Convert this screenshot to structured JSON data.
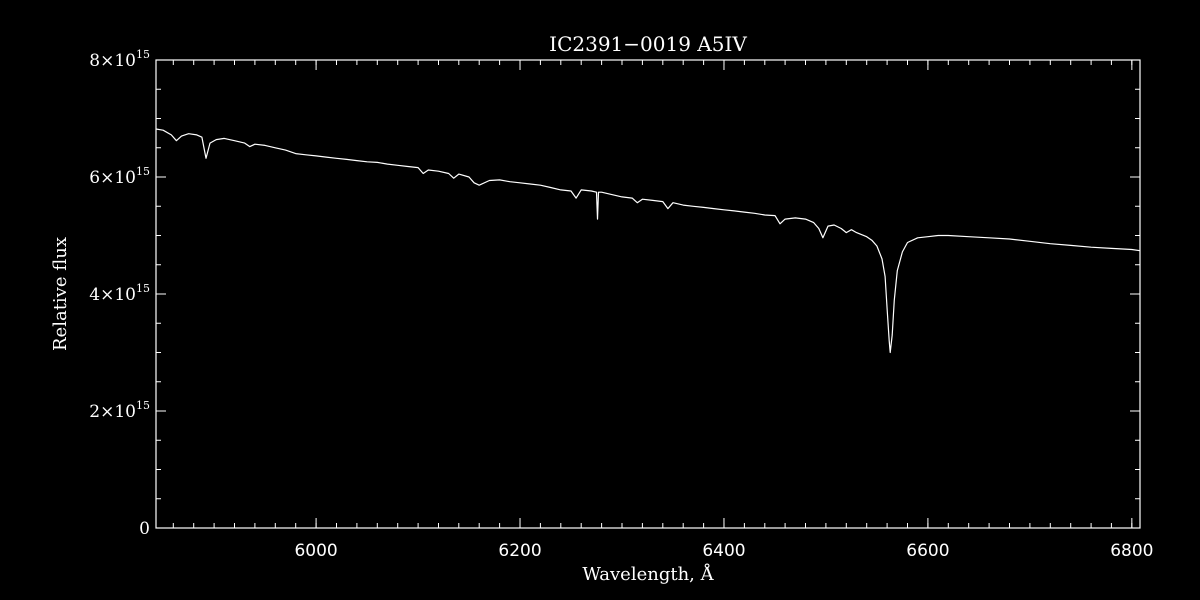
{
  "chart_data": {
    "type": "line",
    "title": "IC2391−0019   A5IV",
    "xlabel": "Wavelength, Å",
    "ylabel": "Relative flux",
    "xlim": [
      5843,
      6808
    ],
    "ylim": [
      0,
      8000000000000000.0
    ],
    "x_ticks": [
      {
        "value": 6000,
        "label": "6000"
      },
      {
        "value": 6200,
        "label": "6200"
      },
      {
        "value": 6400,
        "label": "6400"
      },
      {
        "value": 6600,
        "label": "6600"
      },
      {
        "value": 6800,
        "label": "6800"
      }
    ],
    "y_ticks": [
      {
        "value": 0,
        "mantissa": "0",
        "exponent": ""
      },
      {
        "value": 2000000000000000.0,
        "mantissa": "2×10",
        "exponent": "15"
      },
      {
        "value": 4000000000000000.0,
        "mantissa": "4×10",
        "exponent": "15"
      },
      {
        "value": 6000000000000000.0,
        "mantissa": "6×10",
        "exponent": "15"
      },
      {
        "value": 8000000000000000.0,
        "mantissa": "8×10",
        "exponent": "15"
      }
    ],
    "x_minor_step": 20,
    "y_minor_step": 500000000000000.0,
    "grid": false,
    "colors": {
      "background": "#000000",
      "foreground": "#ffffff"
    },
    "series": [
      {
        "x": [
          5843,
          5850,
          5858,
          5863,
          5868,
          5875,
          5883,
          5888,
          5892,
          5896,
          5902,
          5910,
          5920,
          5930,
          5935,
          5940,
          5950,
          5960,
          5970,
          5980,
          5990,
          6000,
          6010,
          6020,
          6030,
          6040,
          6050,
          6060,
          6070,
          6080,
          6090,
          6100,
          6105,
          6110,
          6120,
          6130,
          6135,
          6140,
          6150,
          6155,
          6160,
          6170,
          6180,
          6190,
          6200,
          6210,
          6220,
          6230,
          6240,
          6250,
          6255,
          6260,
          6270,
          6275,
          6276,
          6277,
          6278,
          6280,
          6290,
          6300,
          6310,
          6315,
          6320,
          6330,
          6340,
          6345,
          6350,
          6360,
          6370,
          6380,
          6390,
          6400,
          6410,
          6420,
          6430,
          6440,
          6450,
          6455,
          6460,
          6470,
          6480,
          6488,
          6493,
          6497,
          6502,
          6508,
          6515,
          6520,
          6525,
          6530,
          6540,
          6545,
          6550,
          6555,
          6558,
          6560,
          6562,
          6563,
          6565,
          6567,
          6570,
          6575,
          6580,
          6590,
          6600,
          6610,
          6620,
          6640,
          6660,
          6680,
          6700,
          6720,
          6740,
          6760,
          6780,
          6800,
          6808
        ],
        "y": [
          6820000000000000.0,
          6800000000000000.0,
          6720000000000000.0,
          6620000000000000.0,
          6700000000000000.0,
          6740000000000000.0,
          6720000000000000.0,
          6680000000000000.0,
          6320000000000000.0,
          6580000000000000.0,
          6640000000000000.0,
          6660000000000000.0,
          6620000000000000.0,
          6580000000000000.0,
          6520000000000000.0,
          6560000000000000.0,
          6540000000000000.0,
          6500000000000000.0,
          6460000000000000.0,
          6400000000000000.0,
          6380000000000000.0,
          6360000000000000.0,
          6340000000000000.0,
          6320000000000000.0,
          6300000000000000.0,
          6280000000000000.0,
          6260000000000000.0,
          6250000000000000.0,
          6220000000000000.0,
          6200000000000000.0,
          6180000000000000.0,
          6160000000000000.0,
          6060000000000000.0,
          6120000000000000.0,
          6100000000000000.0,
          6060000000000000.0,
          5980000000000000.0,
          6050000000000000.0,
          6000000000000000.0,
          5900000000000000.0,
          5860000000000000.0,
          5940000000000000.0,
          5950000000000000.0,
          5920000000000000.0,
          5900000000000000.0,
          5880000000000000.0,
          5860000000000000.0,
          5820000000000000.0,
          5780000000000000.0,
          5760000000000000.0,
          5640000000000000.0,
          5780000000000000.0,
          5760000000000000.0,
          5740000000000000.0,
          5280000000000000.0,
          5740000000000000.0,
          5740000000000000.0,
          5740000000000000.0,
          5700000000000000.0,
          5660000000000000.0,
          5640000000000000.0,
          5560000000000000.0,
          5620000000000000.0,
          5600000000000000.0,
          5580000000000000.0,
          5460000000000000.0,
          5560000000000000.0,
          5520000000000000.0,
          5500000000000000.0,
          5480000000000000.0,
          5460000000000000.0,
          5440000000000000.0,
          5420000000000000.0,
          5400000000000000.0,
          5380000000000000.0,
          5350000000000000.0,
          5340000000000000.0,
          5200000000000000.0,
          5280000000000000.0,
          5300000000000000.0,
          5280000000000000.0,
          5220000000000000.0,
          5120000000000000.0,
          4960000000000000.0,
          5160000000000000.0,
          5180000000000000.0,
          5120000000000000.0,
          5050000000000000.0,
          5100000000000000.0,
          5050000000000000.0,
          4980000000000000.0,
          4920000000000000.0,
          4820000000000000.0,
          4600000000000000.0,
          4300000000000000.0,
          3750000000000000.0,
          3200000000000000.0,
          3000000000000000.0,
          3300000000000000.0,
          3900000000000000.0,
          4400000000000000.0,
          4720000000000000.0,
          4880000000000000.0,
          4960000000000000.0,
          4980000000000000.0,
          5000000000000000.0,
          5000000000000000.0,
          4980000000000000.0,
          4960000000000000.0,
          4940000000000000.0,
          4900000000000000.0,
          4860000000000000.0,
          4830000000000000.0,
          4800000000000000.0,
          4780000000000000.0,
          4760000000000000.0,
          4740000000000000.0
        ]
      }
    ]
  }
}
